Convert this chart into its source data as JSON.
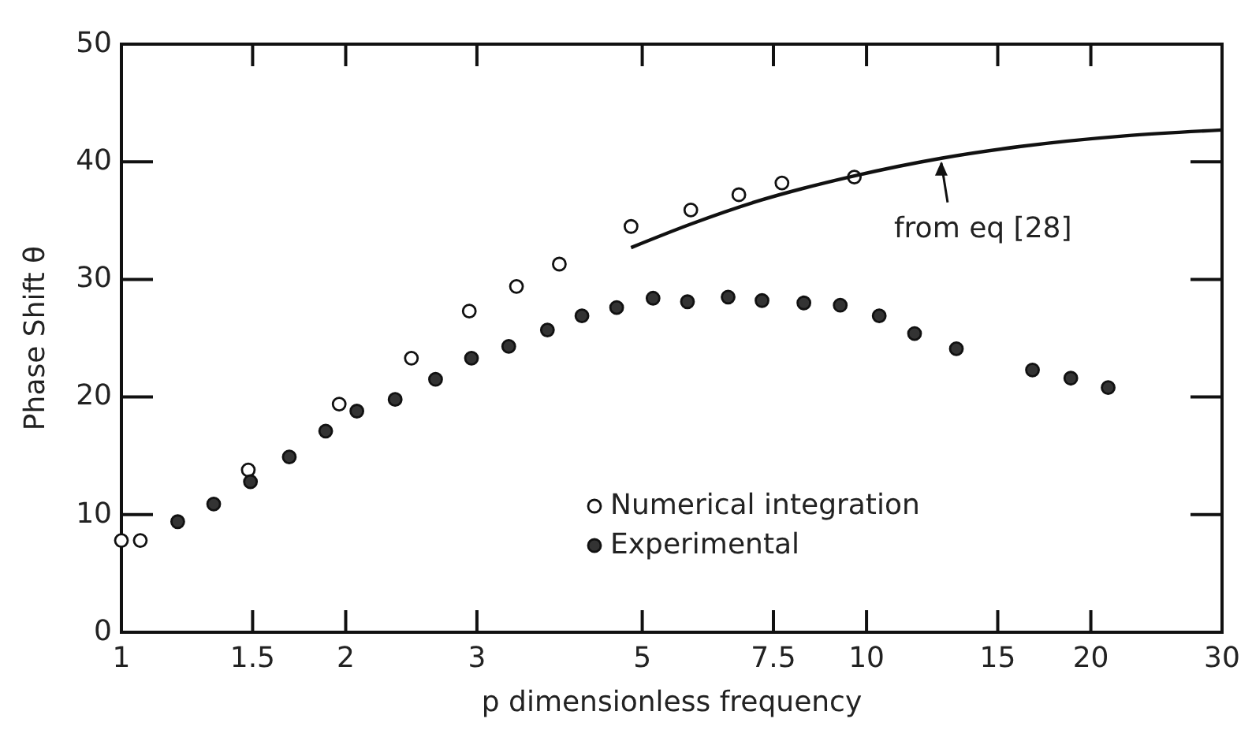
{
  "chart_data": {
    "type": "scatter",
    "xlabel": "p dimensionless frequency",
    "ylabel": "Phase Shift θ",
    "log": "x",
    "xlim": [
      1,
      30
    ],
    "xticks": [
      1,
      1.5,
      2,
      3,
      5,
      7.5,
      10,
      15,
      20,
      30
    ],
    "ylim": [
      0,
      50
    ],
    "yticks": [
      0,
      10,
      20,
      30,
      40,
      50
    ],
    "grid": false,
    "legend": "bottom",
    "marker": "circle",
    "series": [
      {
        "name": "Numerical integration",
        "color": "#ffffff",
        "x": [
          1,
          1.06,
          1.48,
          1.96,
          2.45,
          2.93,
          3.39,
          3.87,
          4.83,
          5.81,
          6.74,
          7.7,
          9.63
        ],
        "values": [
          7.8,
          7.8,
          13.8,
          19.4,
          23.3,
          27.3,
          29.4,
          31.3,
          34.5,
          35.9,
          37.2,
          38.2,
          38.7
        ]
      },
      {
        "name": "Experimental",
        "color": "#333333",
        "x": [
          1.19,
          1.33,
          1.49,
          1.68,
          1.88,
          2.07,
          2.33,
          2.64,
          2.95,
          3.31,
          3.73,
          4.15,
          4.62,
          5.17,
          5.75,
          6.52,
          7.24,
          8.24,
          9.22,
          10.4,
          11.6,
          13.2,
          16.7,
          18.8,
          21.1
        ],
        "values": [
          9.4,
          10.9,
          12.8,
          14.9,
          17.1,
          18.8,
          19.8,
          21.5,
          23.3,
          24.3,
          25.7,
          26.9,
          27.6,
          28.4,
          28.1,
          28.5,
          28.2,
          28.0,
          27.8,
          26.9,
          25.4,
          24.1,
          22.3,
          21.6,
          20.8
        ]
      },
      {
        "type": "line",
        "color": "#111111",
        "marker": "none",
        "line_style": "solid",
        "x": [
          4.83,
          5.81,
          7.1,
          9.63,
          12.6,
          16.1,
          22.2,
          30
        ],
        "values": [
          32.7,
          34.7,
          36.6,
          38.8,
          40.3,
          41.3,
          42.2,
          42.7
        ]
      }
    ],
    "annotations": [
      {
        "text": "from eq [28]",
        "x": 12.6,
        "y": 40.3
      }
    ]
  }
}
